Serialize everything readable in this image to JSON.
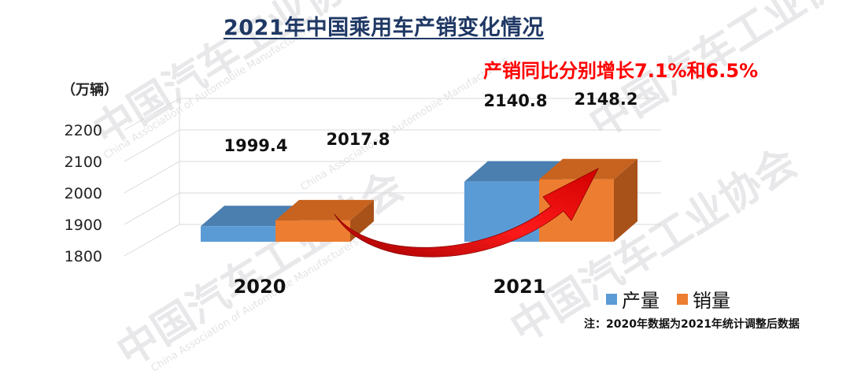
{
  "header": {
    "title": "2021年中国乘用车产销变化情况"
  },
  "callout": "产销同比分别增长7.1%和6.5%",
  "note": "注：2020年数据为2021年统计调整后数据",
  "colors": {
    "production": "#5b9bd5",
    "sales": "#ed7d31",
    "arrow": "#e00000",
    "title": "#1f3864"
  },
  "watermark": {
    "text": "中国汽车工业协会",
    "sub": "China Association of Automobile Manufacturers"
  },
  "chart_data": {
    "type": "bar",
    "ylabel": "（万辆）",
    "ylim": [
      1800,
      2200
    ],
    "yticks": [
      "2200",
      "2100",
      "2000",
      "1900",
      "1800"
    ],
    "categories": [
      "2020",
      "2021"
    ],
    "series": [
      {
        "name": "产量",
        "values": [
          1999.4,
          2140.8
        ],
        "labels": [
          "1999.4",
          "2140.8"
        ]
      },
      {
        "name": "销量",
        "values": [
          2017.8,
          2148.2
        ],
        "labels": [
          "2017.8",
          "2148.2"
        ]
      }
    ],
    "legend_position": "bottom-right",
    "grid": true
  }
}
